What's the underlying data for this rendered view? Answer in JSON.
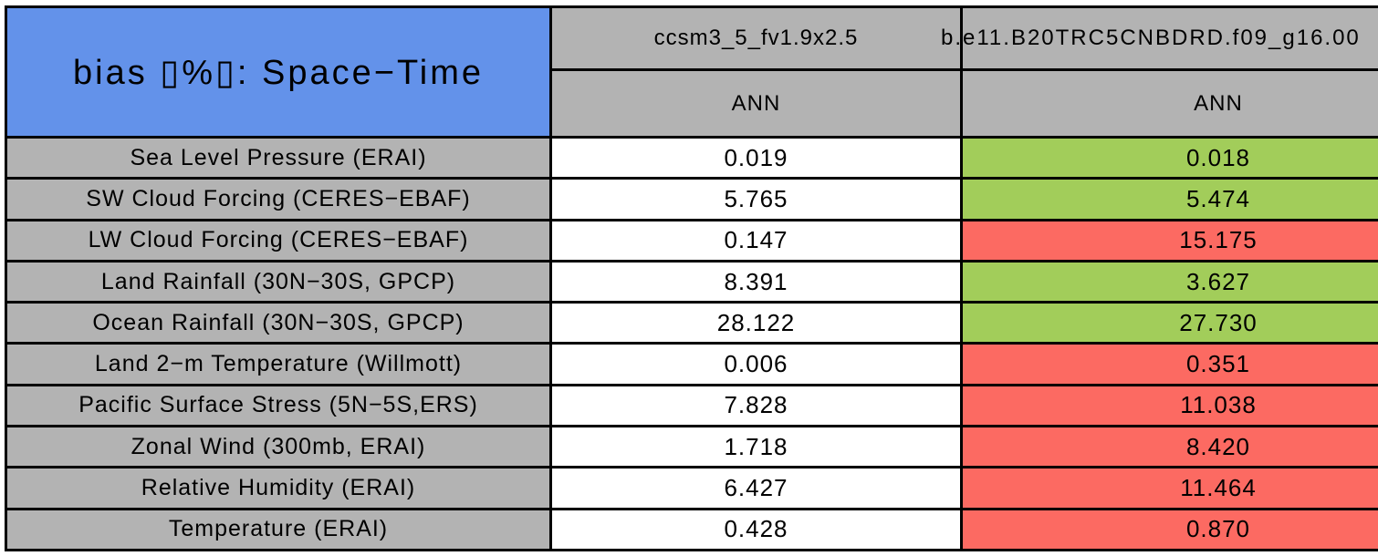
{
  "title": "bias ▯%▯: Space−Time",
  "header": {
    "col1_model": "ccsm3_5_fv1.9x2.5",
    "col2_model": "b.e11.B20TRC5CNBDRD.f09_g16.00",
    "col1_season": "ANN",
    "col2_season": "ANN"
  },
  "rows": [
    {
      "label": "Sea Level Pressure (ERAI)",
      "value1": "0.019",
      "value2": "0.018",
      "value2_status": "better"
    },
    {
      "label": "SW Cloud Forcing (CERES−EBAF)",
      "value1": "5.765",
      "value2": "5.474",
      "value2_status": "better"
    },
    {
      "label": "LW Cloud Forcing (CERES−EBAF)",
      "value1": "0.147",
      "value2": "15.175",
      "value2_status": "worse"
    },
    {
      "label": "Land Rainfall (30N−30S, GPCP)",
      "value1": "8.391",
      "value2": "3.627",
      "value2_status": "better"
    },
    {
      "label": "Ocean Rainfall (30N−30S, GPCP)",
      "value1": "28.122",
      "value2": "27.730",
      "value2_status": "better"
    },
    {
      "label": "Land 2−m Temperature (Willmott)",
      "value1": "0.006",
      "value2": "0.351",
      "value2_status": "worse"
    },
    {
      "label": "Pacific Surface Stress (5N−5S,ERS)",
      "value1": "7.828",
      "value2": "11.038",
      "value2_status": "worse"
    },
    {
      "label": "Zonal Wind (300mb, ERAI)",
      "value1": "1.718",
      "value2": "8.420",
      "value2_status": "worse"
    },
    {
      "label": "Relative Humidity (ERAI)",
      "value1": "6.427",
      "value2": "11.464",
      "value2_status": "worse"
    },
    {
      "label": "Temperature (ERAI)",
      "value1": "0.428",
      "value2": "0.870",
      "value2_status": "worse"
    }
  ],
  "colors": {
    "better": "#A2CD5A",
    "worse": "#FC6A62",
    "title_bg": "#6392EA",
    "header_bg": "#B3B3B3",
    "grid": "#000000",
    "page_bg": "#FFFFFF",
    "text": "#000000"
  },
  "chart_data": {
    "type": "table",
    "title": "bias ▯%▯: Space−Time",
    "column_headers": [
      [
        "ccsm3_5_fv1.9x2.5",
        "ANN"
      ],
      [
        "b.e11.B20TRC5CNBDRD.f09_g16.00",
        "ANN"
      ]
    ],
    "row_labels": [
      "Sea Level Pressure (ERAI)",
      "SW Cloud Forcing (CERES−EBAF)",
      "LW Cloud Forcing (CERES−EBAF)",
      "Land Rainfall (30N−30S, GPCP)",
      "Ocean Rainfall (30N−30S, GPCP)",
      "Land 2−m Temperature (Willmott)",
      "Pacific Surface Stress (5N−5S,ERS)",
      "Zonal Wind (300mb, ERAI)",
      "Relative Humidity (ERAI)",
      "Temperature (ERAI)"
    ],
    "series": [
      {
        "name": "ccsm3_5_fv1.9x2.5",
        "values": [
          0.019,
          5.765,
          0.147,
          8.391,
          28.122,
          0.006,
          7.828,
          1.718,
          6.427,
          0.428
        ]
      },
      {
        "name": "b.e11.B20TRC5CNBDRD.f09_g16.00",
        "values": [
          0.018,
          5.474,
          15.175,
          3.627,
          27.73,
          0.351,
          11.038,
          8.42,
          11.464,
          0.87
        ]
      }
    ],
    "column2_cell_colors": [
      "green",
      "green",
      "red",
      "green",
      "green",
      "red",
      "red",
      "red",
      "red",
      "red"
    ],
    "layout": "first column gray row labels, second column white values, third column color-coded values; grid lines black; title cell blue spanning both header rows; third column clipped at right edge of image"
  }
}
